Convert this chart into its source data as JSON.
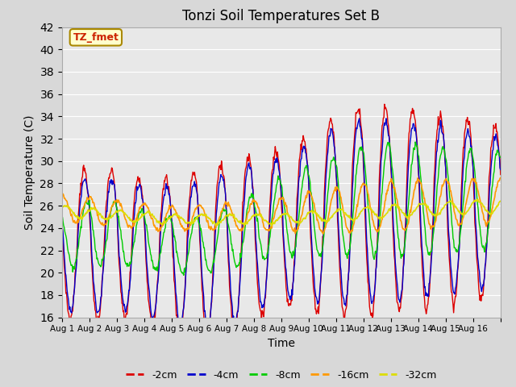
{
  "title": "Tonzi Soil Temperatures Set B",
  "xlabel": "Time",
  "ylabel": "Soil Temperature (C)",
  "ylim": [
    16,
    42
  ],
  "yticks": [
    16,
    18,
    20,
    22,
    24,
    26,
    28,
    30,
    32,
    34,
    36,
    38,
    40,
    42
  ],
  "colors": {
    "-2cm": "#dd0000",
    "-4cm": "#0000cc",
    "-8cm": "#00cc00",
    "-16cm": "#ff9900",
    "-32cm": "#dddd00"
  },
  "legend_labels": [
    "-2cm",
    "-4cm",
    "-8cm",
    "-16cm",
    "-32cm"
  ],
  "annotation_text": "TZ_fmet",
  "annotation_color": "#cc2200",
  "annotation_bg": "#ffffcc",
  "annotation_edge": "#aa8800",
  "fig_bg_color": "#d8d8d8",
  "plot_bg_color": "#e8e8e8",
  "grid_color": "#ffffff",
  "n_days": 16,
  "samples_per_day": 48
}
